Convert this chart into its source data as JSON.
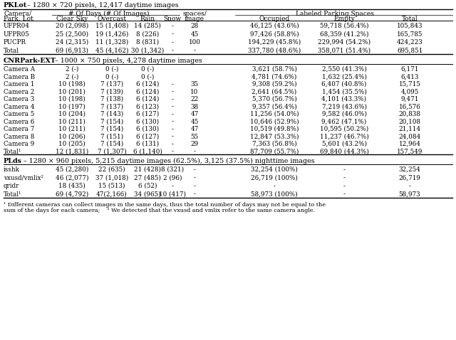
{
  "title_PKLot": "PKLot – 1280 × 720 pixels, 12,417 daytime images",
  "title_CNR": "CNRPark-EXT – 1000 × 750 pixels, 4,278 daytime images",
  "title_PLds": "PLds – 1280 × 960 pixels, 5,215 daytime images (62.5%), 3,125 (37.5%) nighttime images",
  "PKLot_rows": [
    [
      "UFPR04",
      "20 (2,098)",
      "15 (1,408)",
      "14 (285)",
      "-",
      "28",
      "46,125 (43.6%)",
      "59,718 (56.4%)",
      "105,843"
    ],
    [
      "UFPR05",
      "25 (2,500)",
      "19 (1,426)",
      "8 (226)",
      "-",
      "45",
      "97,426 (58.8%)",
      "68,359 (41.2%)",
      "165,785"
    ],
    [
      "PUCPR",
      "24 (2,315)",
      "11 (1,328)",
      "8 (831)",
      "-",
      "100",
      "194,229 (45.8%)",
      "229,994 (54.2%)",
      "424,223"
    ],
    [
      "Total",
      "69 (6,913)",
      "45 (4,162)",
      "30 (1,342)",
      "-",
      "-",
      "337,780 (48.6%)",
      "358,071 (51.4%)",
      "695,851"
    ]
  ],
  "CNR_rows": [
    [
      "Camera A",
      "2 (-)",
      "0 (-)",
      "0 (-)",
      "",
      "",
      "3,621 (58.7%)",
      "2,550 (41.3%)",
      "6,171"
    ],
    [
      "Camera B",
      "2 (-)",
      "0 (-)",
      "0 (-)",
      "",
      "",
      "4,781 (74.6%)",
      "1,632 (25.4%)",
      "6,413"
    ],
    [
      "Camera 1",
      "10 (198)",
      "7 (137)",
      "6 (124)",
      "-",
      "35",
      "9,308 (59.2%)",
      "6,407 (40.8%)",
      "15,715"
    ],
    [
      "Camera 2",
      "10 (201)",
      "7 (139)",
      "6 (124)",
      "-",
      "10",
      "2,641 (64.5%)",
      "1,454 (35.5%)",
      "4,095"
    ],
    [
      "Camera 3",
      "10 (198)",
      "7 (138)",
      "6 (124)",
      "-",
      "22",
      "5,370 (56.7%)",
      "4,101 (43.3%)",
      "9,471"
    ],
    [
      "Camera 4",
      "10 (197)",
      "7 (137)",
      "6 (123)",
      "-",
      "38",
      "9,357 (56.4%)",
      "7,219 (43.6%)",
      "16,576"
    ],
    [
      "Camera 5",
      "10 (204)",
      "7 (143)",
      "6 (127)",
      "-",
      "47",
      "11,256 (54.0%)",
      "9,582 (46.0%)",
      "20,838"
    ],
    [
      "Camera 6",
      "10 (211)",
      "7 (154)",
      "6 (130)",
      "-",
      "45",
      "10,646 (52.9%)",
      "9,462 (47.1%)",
      "20,108"
    ],
    [
      "Camera 7",
      "10 (211)",
      "7 (154)",
      "6 (130)",
      "-",
      "47",
      "10,519 (49.8%)",
      "10,595 (50.2%)",
      "21,114"
    ],
    [
      "Camera 8",
      "10 (206)",
      "7 (151)",
      "6 (127)",
      "-",
      "55",
      "12,847 (53.3%)",
      "11,237 (46.7%)",
      "24,084"
    ],
    [
      "Camera 9",
      "10 (205)",
      "7 (154)",
      "6 (131)",
      "-",
      "29",
      "7,363 (56.8%)",
      "5,601 (43.2%)",
      "12,964"
    ],
    [
      "Total¹",
      "12 (1,831)",
      "7 (1,307)",
      "6 (1,140)",
      "-",
      "-",
      "87,709 (55.7%)",
      "69,840 (44.3%)",
      "157,549"
    ]
  ],
  "PLds_rows": [
    [
      "isshk",
      "45 (2,280)",
      "22 (635)",
      "21 (428)",
      "8 (321)",
      "-",
      "32,254 (100%)",
      "-",
      "32,254"
    ],
    [
      "vxusd/vmlix²",
      "46 (2,077)",
      "37 (1,018)",
      "27 (485)",
      "2 (96)",
      "-",
      "26,719 (100%)",
      "-",
      "26,719"
    ],
    [
      "qridr",
      "18 (435)",
      "15 (513)",
      "6 (52)",
      "-",
      "-",
      "-",
      "-",
      "-"
    ],
    [
      "Total¹",
      "69 (4,792)",
      "47(2,166)",
      "34 (965)",
      "10 (417)",
      "-",
      "58,973 (100%)",
      "-",
      "58,973"
    ]
  ],
  "footnote1": "¹ Different cameras can collect images in the same days, thus the total number of days may not be equal to the",
  "footnote2": "sum of the days for each camera;    ² We detected that the vxusd and vmlix refer to the same camera angle."
}
